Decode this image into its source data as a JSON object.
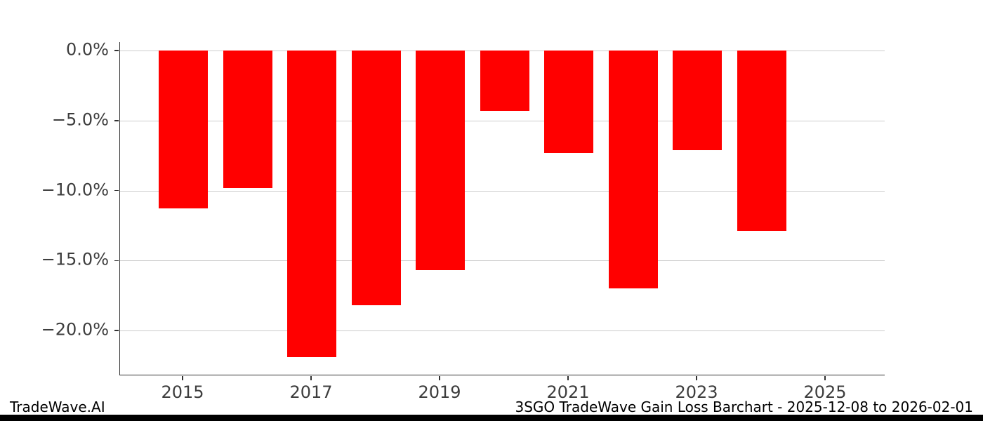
{
  "footer": {
    "left": "TradeWave.AI",
    "right": "3SGO TradeWave Gain Loss Barchart - 2025-12-08 to 2026-02-01"
  },
  "chart_data": {
    "type": "bar",
    "title": "",
    "xlabel": "",
    "ylabel": "",
    "categories": [
      2015,
      2016,
      2017,
      2018,
      2019,
      2020,
      2021,
      2022,
      2023,
      2024
    ],
    "values": [
      -11.3,
      -9.8,
      -21.9,
      -18.2,
      -15.7,
      -4.3,
      -7.3,
      -17.0,
      -7.1,
      -12.9
    ],
    "ylim": [
      -23.2,
      0.6
    ],
    "y_ticks": [
      0,
      -5,
      -10,
      -15,
      -20
    ],
    "y_tick_labels": [
      "0.0%",
      "−5.0%",
      "−10.0%",
      "−15.0%",
      "−20.0%"
    ],
    "x_ticks": [
      2015,
      2017,
      2019,
      2021,
      2023,
      2025
    ],
    "x_tick_labels": [
      "2015",
      "2017",
      "2019",
      "2021",
      "2023",
      "2025"
    ],
    "bar_color": "#ff0000",
    "grid": true,
    "legend": "none"
  }
}
